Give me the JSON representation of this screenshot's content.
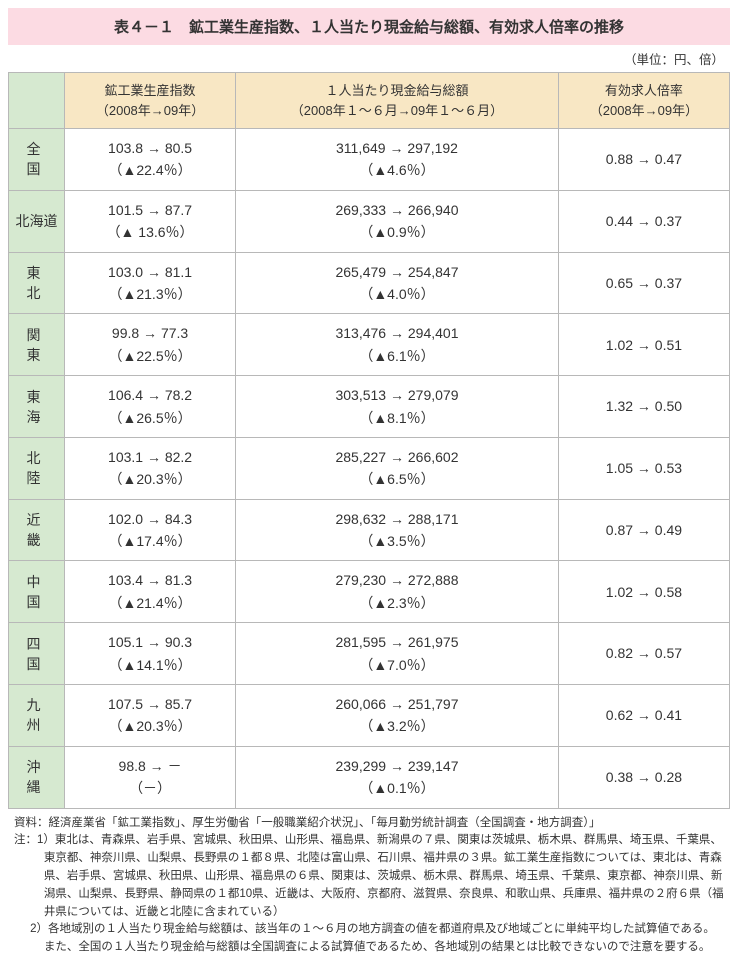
{
  "title": "表４－１　鉱工業生産指数、１人当たり現金給与総額、有効求人倍率の推移",
  "unit": "（単位：円、倍）",
  "columns": {
    "c1a": "鉱工業生産指数",
    "c1b": "（2008年→09年）",
    "c2a": "１人当たり現金給与総額",
    "c2b": "（2008年１～６月→09年１～６月）",
    "c3a": "有効求人倍率",
    "c3b": "（2008年→09年）"
  },
  "rows": [
    {
      "r": "全　国",
      "a": "103.8 → 80.5",
      "ap": "（▲22.4％）",
      "b": "311,649 → 297,192",
      "bp": "（▲4.6％）",
      "c": "0.88 → 0.47"
    },
    {
      "r": "北海道",
      "a": "101.5 → 87.7",
      "ap": "（▲ 13.6％）",
      "b": "269,333 → 266,940",
      "bp": "（▲0.9％）",
      "c": "0.44 → 0.37",
      "tight": true
    },
    {
      "r": "東　北",
      "a": "103.0 → 81.1",
      "ap": "（▲21.3％）",
      "b": "265,479 → 254,847",
      "bp": "（▲4.0％）",
      "c": "0.65 → 0.37"
    },
    {
      "r": "関　東",
      "a": "99.8 → 77.3",
      "ap": "（▲22.5％）",
      "b": "313,476 → 294,401",
      "bp": "（▲6.1％）",
      "c": "1.02 → 0.51"
    },
    {
      "r": "東　海",
      "a": "106.4 → 78.2",
      "ap": "（▲26.5％）",
      "b": "303,513 → 279,079",
      "bp": "（▲8.1％）",
      "c": "1.32 → 0.50"
    },
    {
      "r": "北　陸",
      "a": "103.1 → 82.2",
      "ap": "（▲20.3％）",
      "b": "285,227 → 266,602",
      "bp": "（▲6.5％）",
      "c": "1.05 → 0.53"
    },
    {
      "r": "近　畿",
      "a": "102.0 → 84.3",
      "ap": "（▲17.4％）",
      "b": "298,632 → 288,171",
      "bp": "（▲3.5％）",
      "c": "0.87 → 0.49"
    },
    {
      "r": "中　国",
      "a": "103.4 → 81.3",
      "ap": "（▲21.4％）",
      "b": "279,230 → 272,888",
      "bp": "（▲2.3％）",
      "c": "1.02 → 0.58"
    },
    {
      "r": "四　国",
      "a": "105.1 → 90.3",
      "ap": "（▲14.1％）",
      "b": "281,595 → 261,975",
      "bp": "（▲7.0％）",
      "c": "0.82 → 0.57"
    },
    {
      "r": "九　州",
      "a": "107.5 → 85.7",
      "ap": "（▲20.3％）",
      "b": "260,066 → 251,797",
      "bp": "（▲3.2％）",
      "c": "0.62 → 0.41"
    },
    {
      "r": "沖　縄",
      "a": "98.8 →  －",
      "ap": "（－）",
      "b": "239,299 → 239,147",
      "bp": "（▲0.1％）",
      "c": "0.38 → 0.28"
    }
  ],
  "src": {
    "l1": "資料：経済産業省「鉱工業指数」、厚生労働省「一般職業紹介状況」、「毎月勤労統計調査（全国調査・地方調査）」",
    "l2": "注：1）東北は、青森県、岩手県、宮城県、秋田県、山形県、福島県、新潟県の７県、関東は茨城県、栃木県、群馬県、埼玉県、千葉県、東京都、神奈川県、山梨県、長野県の１都８県、北陸は富山県、石川県、福井県の３県。鉱工業生産指数については、東北は、青森県、岩手県、宮城県、秋田県、山形県、福島県の６県、関東は、茨城県、栃木県、群馬県、埼玉県、千葉県、東京都、神奈川県、新潟県、山梨県、長野県、静岡県の１都10県、近畿は、大阪府、京都府、滋賀県、奈良県、和歌山県、兵庫県、福井県の２府６県（福井県については、近畿と北陸に含まれている）",
    "l3": "2）各地域別の１人当たり現金給与総額は、該当年の１～６月の地方調査の値を都道府県及び地域ごとに単純平均した試算値である。また、全国の１人当たり現金給与総額は全国調査による試算値であるため、各地域別の結果とは比較できないので注意を要する。"
  },
  "colors": {
    "title_bg": "#fcdbe3",
    "head_bg": "#f8e7c4",
    "row_bg": "#d6e9d0",
    "border": "#b8b8b8"
  }
}
